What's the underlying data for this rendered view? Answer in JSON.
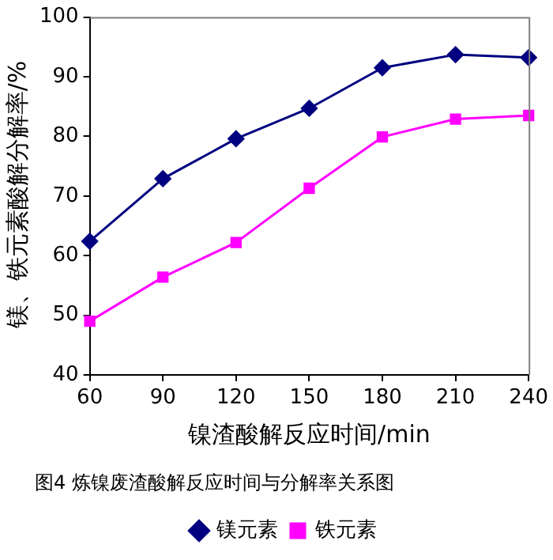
{
  "chart_data": {
    "type": "line",
    "xlabel": "镍渣酸解反应时间/min",
    "ylabel": "镁、铁元素酸解分解率/%",
    "x": [
      60,
      90,
      120,
      150,
      180,
      210,
      240
    ],
    "series": [
      {
        "name": "镁元素",
        "color": "#000080",
        "marker": "diamond",
        "values": [
          62.4,
          72.9,
          79.6,
          84.7,
          91.5,
          93.7,
          93.2
        ]
      },
      {
        "name": "铁元素",
        "color": "#ff00ff",
        "marker": "square",
        "values": [
          49.0,
          56.4,
          62.2,
          71.3,
          79.9,
          82.9,
          83.5
        ]
      }
    ],
    "xlim": [
      60,
      240
    ],
    "xticks": [
      60,
      90,
      120,
      150,
      180,
      210,
      240
    ],
    "ylim": [
      40,
      100
    ],
    "yticks": [
      40,
      50,
      60,
      70,
      80,
      90,
      100
    ],
    "grid": false,
    "legend": "bottom",
    "line_style": "solid",
    "annotations": [
      "图4 炼镍废渣酸解反应时间与分解率关系图"
    ]
  }
}
